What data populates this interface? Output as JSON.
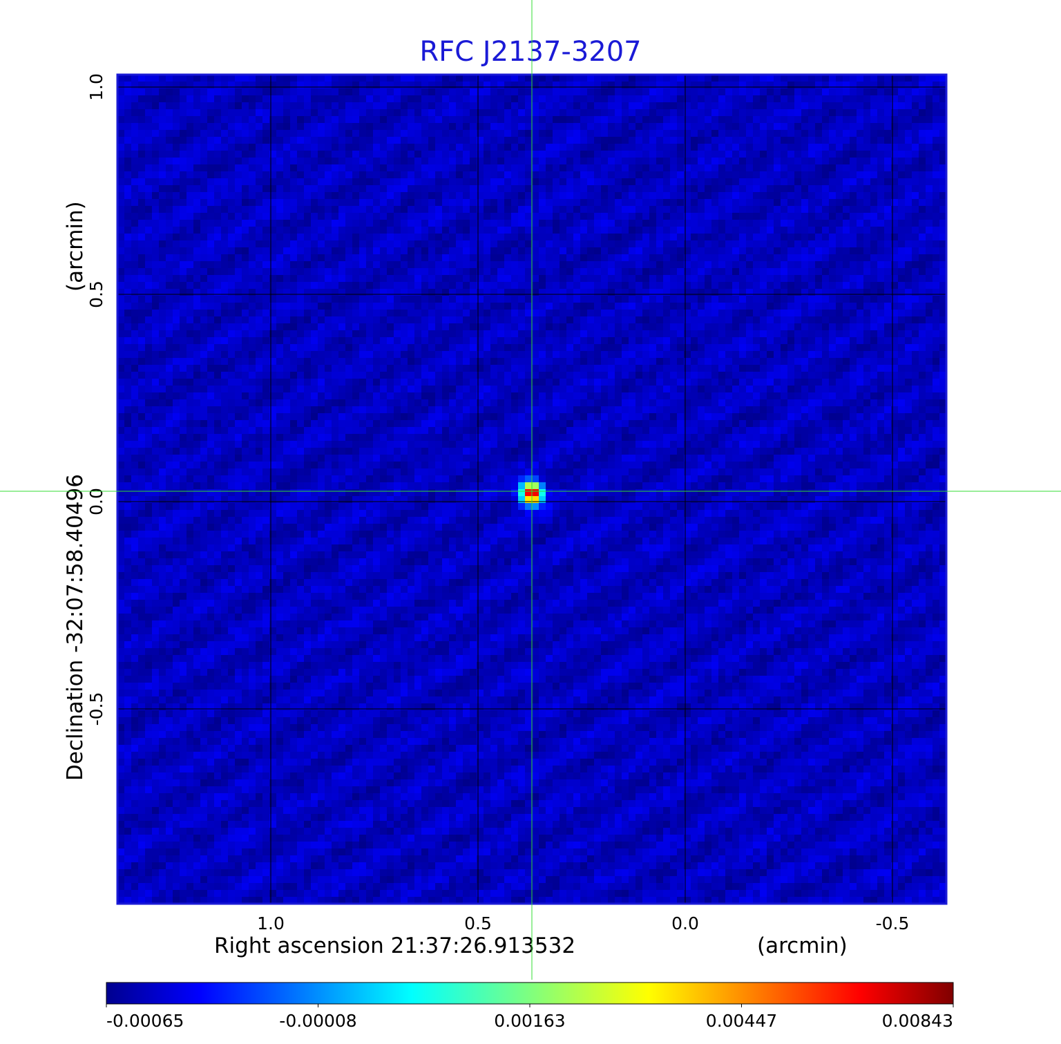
{
  "chart_data": {
    "type": "heatmap",
    "title": "RFC J2137-3207",
    "xlabel": "Right ascension  21:37:26.913532",
    "xunit": "(arcmin)",
    "ylabel": "Declination  -32:07:58.40496",
    "yunit": "(arcmin)",
    "xlim": [
      1.37,
      -0.63
    ],
    "ylim": [
      -0.97,
      1.03
    ],
    "x_ticks": [
      1.0,
      0.5,
      0.0,
      -0.5
    ],
    "x_tick_labels": [
      "1.0",
      "0.5",
      "0.0",
      "-0.5"
    ],
    "y_ticks": [
      1.0,
      0.5,
      0.0,
      -0.5
    ],
    "y_tick_labels": [
      "1.0",
      "0.5",
      "0.0",
      "-0.5"
    ],
    "grid": true,
    "crosshair": {
      "x": 0.37,
      "y": 0.025
    },
    "colormap": "jet",
    "colorbar": {
      "range": [
        -0.00065,
        0.00843
      ],
      "tick_labels": [
        "-0.00065",
        "-0.00008",
        "0.00163",
        "0.00447",
        "0.00843"
      ]
    },
    "peak": {
      "x": 0.37,
      "y": 0.02,
      "value": 0.00843
    },
    "background_level": -8e-05
  },
  "colors": {
    "title": "#1a1ad6",
    "frame": "#1a1ad6",
    "crosshair": "#33dd33",
    "grid": "#000000"
  }
}
